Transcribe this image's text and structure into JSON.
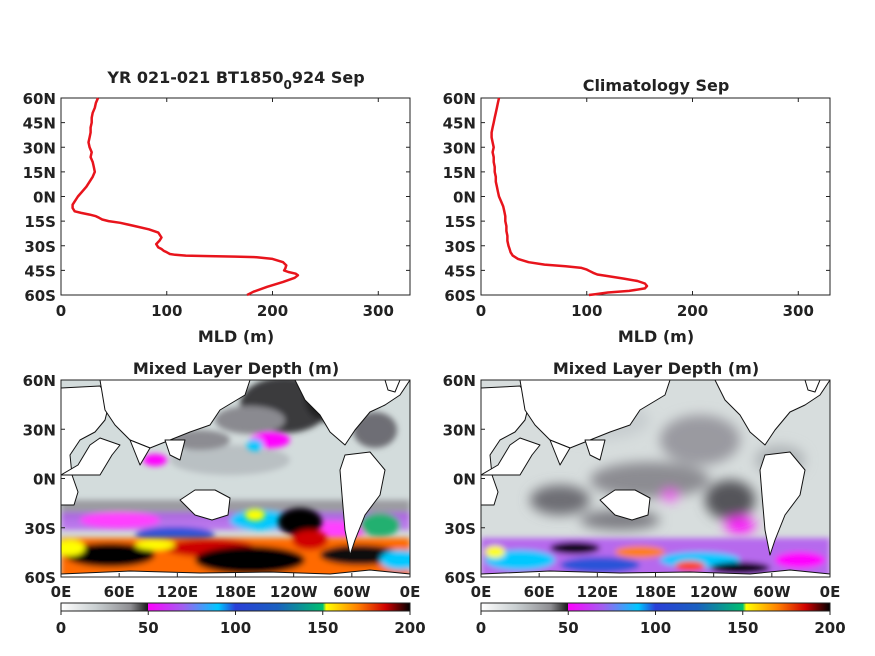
{
  "chart_data": [
    {
      "type": "line",
      "title_main": "YR 021-021 BT1850",
      "title_sub": "0",
      "title_tail": "924 Sep",
      "xlabel": "MLD (m)",
      "xlim": [
        0,
        330
      ],
      "ylim": [
        -60,
        60
      ],
      "xticks": [
        "0",
        "100",
        "200",
        "300"
      ],
      "xtick_values": [
        0,
        100,
        200,
        300
      ],
      "yticks": [
        "60N",
        "45N",
        "30N",
        "15N",
        "0N",
        "15S",
        "30S",
        "45S",
        "60S"
      ],
      "ytick_values": [
        60,
        45,
        30,
        15,
        0,
        -15,
        -30,
        -45,
        -60
      ],
      "line_color": "#e8141c",
      "series": [
        {
          "x": [
            35,
            33,
            32,
            30,
            29,
            29,
            28,
            28,
            27,
            26,
            27,
            29,
            28,
            30,
            31,
            32,
            30,
            27,
            24,
            20,
            16,
            13,
            11,
            11,
            13,
            19,
            27,
            33,
            36,
            39,
            45,
            56,
            70,
            83,
            92,
            95,
            93,
            90,
            92,
            95,
            97,
            100,
            103,
            108,
            118,
            140,
            165,
            185,
            200,
            210,
            213,
            212,
            211,
            215,
            222,
            224,
            221,
            210,
            195,
            182,
            176
          ],
          "y": [
            60,
            57,
            54,
            51,
            48,
            45,
            42,
            39,
            36,
            33,
            30,
            27,
            24,
            21,
            18,
            15,
            12,
            9,
            6,
            3,
            0,
            -3,
            -5,
            -7,
            -9,
            -10,
            -11,
            -12,
            -13,
            -14,
            -15,
            -16,
            -18,
            -20,
            -22,
            -25,
            -27,
            -29,
            -31,
            -32,
            -33,
            -34,
            -35,
            -35.5,
            -36,
            -36.3,
            -36.6,
            -37,
            -38,
            -40,
            -42,
            -44,
            -45,
            -46,
            -47,
            -48,
            -49.5,
            -52,
            -55,
            -58,
            -60
          ]
        }
      ]
    },
    {
      "type": "line",
      "title": "Climatology Sep",
      "xlabel": "MLD (m)",
      "xlim": [
        0,
        330
      ],
      "ylim": [
        -60,
        60
      ],
      "xticks": [
        "0",
        "100",
        "200",
        "300"
      ],
      "xtick_values": [
        0,
        100,
        200,
        300
      ],
      "yticks": [
        "60N",
        "45N",
        "30N",
        "15N",
        "0N",
        "15S",
        "30S",
        "45S",
        "60S"
      ],
      "ytick_values": [
        60,
        45,
        30,
        15,
        0,
        -15,
        -30,
        -45,
        -60
      ],
      "line_color": "#e8141c",
      "series": [
        {
          "x": [
            17,
            16,
            15,
            14,
            13,
            12,
            11,
            10,
            10,
            11,
            12,
            11,
            12,
            12,
            13,
            13,
            14,
            14,
            15,
            16,
            17,
            19,
            21,
            22,
            23,
            23,
            24,
            24,
            25,
            25,
            26,
            27,
            28,
            30,
            35,
            45,
            60,
            80,
            95,
            100,
            103,
            106,
            110,
            120,
            135,
            148,
            155,
            157,
            155,
            140,
            120,
            108,
            102
          ],
          "y": [
            60,
            57,
            54,
            51,
            48,
            45,
            42,
            39,
            36,
            33,
            30,
            27,
            24,
            21,
            18,
            15,
            12,
            9,
            6,
            3,
            0,
            -3,
            -6,
            -9,
            -12,
            -15,
            -18,
            -21,
            -24,
            -27,
            -30,
            -32,
            -34,
            -36,
            -38,
            -40,
            -41.5,
            -42.5,
            -43.5,
            -44.5,
            -45.5,
            -46.5,
            -47.5,
            -48.5,
            -50,
            -51.5,
            -53,
            -54.5,
            -56,
            -57.5,
            -58.5,
            -59.5,
            -60
          ]
        }
      ]
    },
    {
      "type": "heatmap",
      "title": "Mixed Layer Depth (m)",
      "yticks": [
        "60N",
        "30N",
        "0N",
        "30S",
        "60S"
      ],
      "ytick_values": [
        60,
        30,
        0,
        -30,
        -60
      ],
      "xticks": [
        "0E",
        "60E",
        "120E",
        "180E",
        "120W",
        "60W",
        "0E"
      ],
      "xtick_values": [
        0,
        60,
        120,
        180,
        240,
        300,
        360
      ],
      "colorbar_ticks": [
        "0",
        "50",
        "100",
        "150",
        "200"
      ],
      "colorbar_values": [
        0,
        50,
        100,
        150,
        200
      ]
    },
    {
      "type": "heatmap",
      "title": "Mixed Layer Depth (m)",
      "yticks": [
        "60N",
        "30N",
        "0N",
        "30S",
        "60S"
      ],
      "ytick_values": [
        60,
        30,
        0,
        -30,
        -60
      ],
      "xticks": [
        "0E",
        "60E",
        "120E",
        "180E",
        "120W",
        "60W",
        "0E"
      ],
      "xtick_values": [
        0,
        60,
        120,
        180,
        240,
        300,
        360
      ],
      "colorbar_ticks": [
        "0",
        "50",
        "100",
        "150",
        "200"
      ],
      "colorbar_values": [
        0,
        50,
        100,
        150,
        200
      ]
    }
  ],
  "colors": {
    "colormap": [
      "#ffffff",
      "#cfd6d8",
      "#8c8c8f",
      "#3a3a3c",
      "#1a1a1a",
      "#ff00ff",
      "#9b5ff0",
      "#00c8ff",
      "#2a52d8",
      "#00b050",
      "#ffff00",
      "#ff7f00",
      "#d00000",
      "#000000"
    ],
    "ocean_light": "#d3dcdc",
    "ocean_dark": "#3c3c40",
    "southern_ocean": "#111111"
  }
}
